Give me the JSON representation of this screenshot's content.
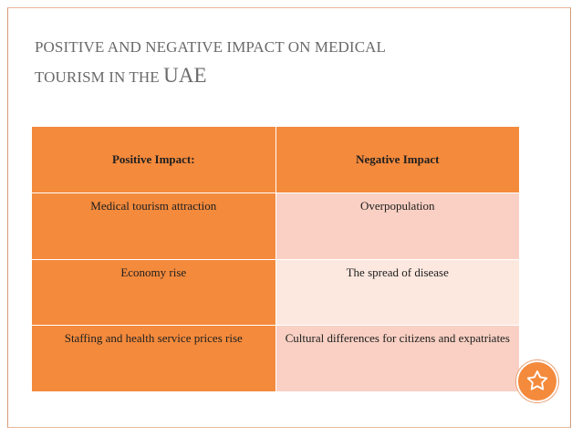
{
  "slide": {
    "title_line1": "POSITIVE AND NEGATIVE IMPACT ON MEDICAL",
    "title_line2_part1": "TOURISM IN THE ",
    "title_line2_part2": "UAE"
  },
  "table": {
    "headers": [
      "Positive Impact:",
      "Negative  Impact"
    ],
    "rows": [
      [
        "Medical tourism attraction",
        "Overpopulation"
      ],
      [
        "Economy rise",
        "The spread of disease"
      ],
      [
        "Staffing and health service prices rise",
        "Cultural differences for citizens and expatriates"
      ]
    ]
  },
  "colors": {
    "accent": "#f48a3c",
    "light_cell": "#f9d0c3",
    "lighter_cell": "#fde8df",
    "title": "#6a6a6a"
  },
  "icons": {
    "corner_badge": "star-icon"
  }
}
